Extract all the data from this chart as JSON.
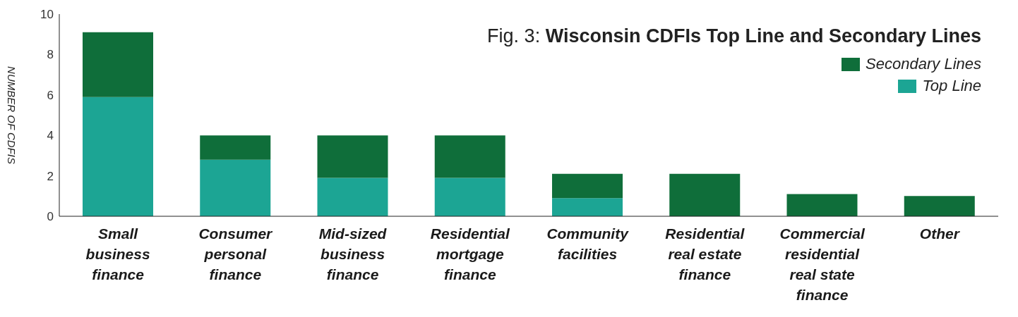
{
  "chart_data": {
    "type": "bar",
    "title": "Fig. 3: Wisconsin CDFIs Top Line and Secondary Lines",
    "ylabel": "NUMBER OF CDFIS",
    "categories": [
      "Small business finance",
      "Consumer personal finance",
      "Mid-sized business finance",
      "Residential mortgage finance",
      "Community facilities",
      "Residential real estate finance",
      "Commercial residential real state finance",
      "Other"
    ],
    "series": [
      {
        "name": "Top Line",
        "color": "#1ca594",
        "values": [
          5.9,
          2.8,
          1.9,
          1.9,
          0.9,
          0,
          0,
          0
        ]
      },
      {
        "name": "Secondary Lines",
        "color": "#0f6e3a",
        "values": [
          3.2,
          1.2,
          2.1,
          2.1,
          1.2,
          2.1,
          1.1,
          1.0
        ]
      }
    ],
    "stacked": true,
    "ylim": [
      0,
      10
    ],
    "yticks": [
      0,
      2,
      4,
      6,
      8,
      10
    ],
    "grid": false,
    "legend": "top right"
  }
}
